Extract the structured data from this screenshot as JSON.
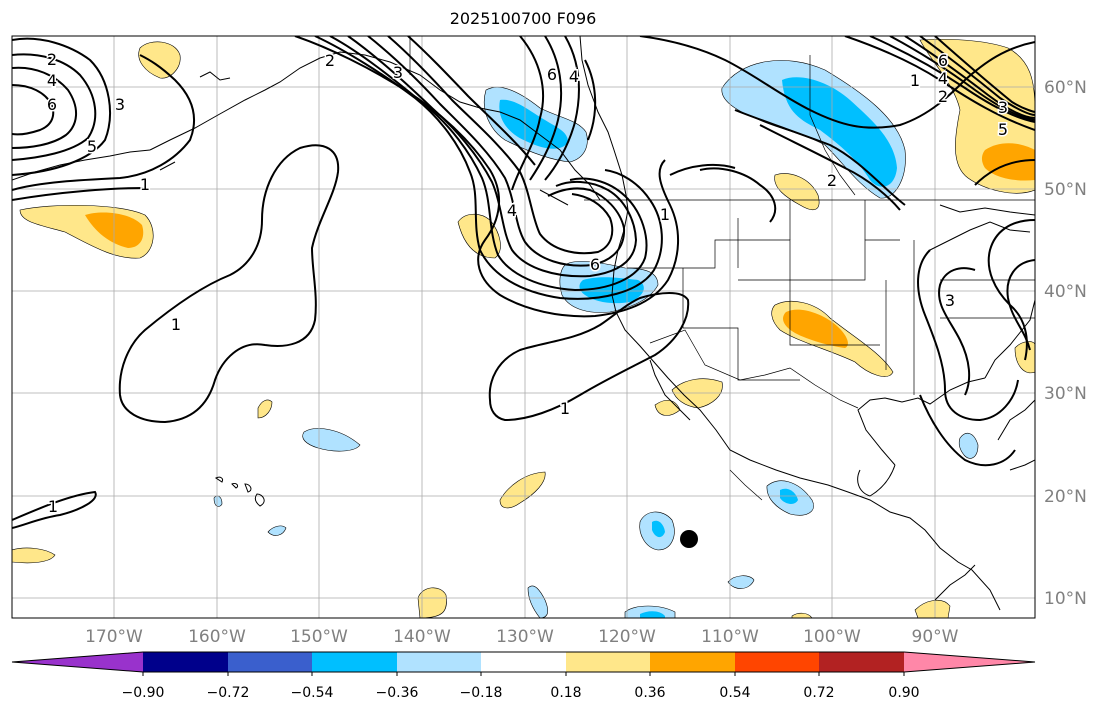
{
  "title": "2025100700 F096",
  "map": {
    "lon_labels": [
      "170°W",
      "160°W",
      "150°W",
      "140°W",
      "130°W",
      "120°W",
      "110°W",
      "100°W",
      "90°W"
    ],
    "lat_labels": [
      "60°N",
      "50°N",
      "40°N",
      "30°N",
      "20°N",
      "10°N"
    ],
    "contour_labels": [
      "2",
      "4",
      "6",
      "3",
      "5",
      "1",
      "3",
      "2",
      "6",
      "4",
      "1",
      "6",
      "1",
      "1",
      "4",
      "1",
      "2",
      "6",
      "4",
      "2",
      "3",
      "5",
      "3",
      "1"
    ],
    "marker": "storm-center-dot"
  },
  "colorbar": {
    "ticks": [
      "−0.90",
      "−0.72",
      "−0.54",
      "−0.36",
      "−0.18",
      "0.18",
      "0.36",
      "0.54",
      "0.72",
      "0.90"
    ],
    "colors": [
      "#9932cc",
      "#00008b",
      "#3a5fcd",
      "#00bfff",
      "#b0e2ff",
      "#ffffff",
      "#ffe78a",
      "#ffa500",
      "#ff4500",
      "#b22222",
      "#ff87a8"
    ]
  },
  "colors": {
    "grid": "#aaaaaa",
    "coast": "#000000",
    "label": "#808080",
    "light_blue": "#b0e2ff",
    "blue": "#00bfff",
    "light_yellow": "#ffe78a",
    "orange": "#ffa500",
    "red_orange": "#ff4500"
  }
}
